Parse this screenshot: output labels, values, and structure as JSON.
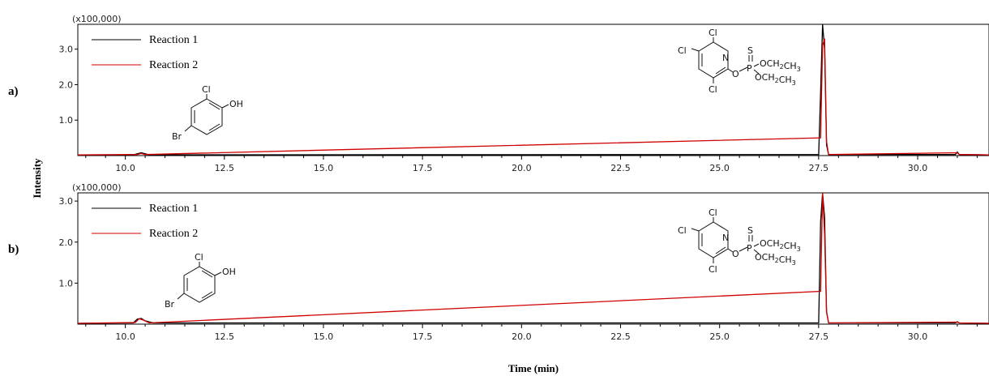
{
  "figure": {
    "y_axis_label": "Intensity",
    "x_axis_label": "Time (min)"
  },
  "chart_data": [
    {
      "type": "line",
      "panel_label": "a)",
      "scale_label": "(x100,000)",
      "xlim": [
        8.8,
        31.8
      ],
      "ylim": [
        0,
        3.7
      ],
      "x_ticks": [
        "10.0",
        "12.5",
        "15.0",
        "17.5",
        "20.0",
        "22.5",
        "25.0",
        "27.5",
        "30.0"
      ],
      "y_ticks": [
        "1.0",
        "2.0",
        "3.0"
      ],
      "legend_position": "top-left",
      "series": [
        {
          "name": "Reaction 1",
          "color": "#000000",
          "points": [
            [
              8.8,
              0.02
            ],
            [
              10.2,
              0.02
            ],
            [
              10.3,
              0.05
            ],
            [
              10.4,
              0.08
            ],
            [
              10.5,
              0.05
            ],
            [
              10.6,
              0.02
            ],
            [
              27.5,
              0.03
            ],
            [
              27.55,
              1.8
            ],
            [
              27.6,
              3.7
            ],
            [
              27.65,
              3.0
            ],
            [
              27.7,
              0.3
            ],
            [
              27.75,
              0.03
            ],
            [
              30.95,
              0.03
            ],
            [
              31.0,
              0.1
            ],
            [
              31.05,
              0.03
            ],
            [
              31.8,
              0.02
            ]
          ]
        },
        {
          "name": "Reaction 2",
          "color": "#d00000",
          "points": [
            [
              8.8,
              0.02
            ],
            [
              10.3,
              0.03
            ],
            [
              10.4,
              0.06
            ],
            [
              10.5,
              0.03
            ],
            [
              27.55,
              0.5
            ],
            [
              27.6,
              3.1
            ],
            [
              27.65,
              3.3
            ],
            [
              27.7,
              0.4
            ],
            [
              27.75,
              0.03
            ],
            [
              31.0,
              0.08
            ],
            [
              31.05,
              0.03
            ],
            [
              31.8,
              0.02
            ]
          ]
        }
      ]
    },
    {
      "type": "line",
      "panel_label": "b)",
      "scale_label": "(x100,000)",
      "xlim": [
        8.8,
        31.8
      ],
      "ylim": [
        0,
        3.2
      ],
      "x_ticks": [
        "10.0",
        "12.5",
        "15.0",
        "17.5",
        "20.0",
        "22.5",
        "25.0",
        "27.5",
        "30.0"
      ],
      "y_ticks": [
        "1.0",
        "2.0",
        "3.0"
      ],
      "legend_position": "top-left",
      "series": [
        {
          "name": "Reaction 1",
          "color": "#000000",
          "points": [
            [
              8.8,
              0.02
            ],
            [
              10.2,
              0.03
            ],
            [
              10.3,
              0.12
            ],
            [
              10.4,
              0.14
            ],
            [
              10.5,
              0.08
            ],
            [
              10.7,
              0.03
            ],
            [
              27.5,
              0.03
            ],
            [
              27.55,
              2.5
            ],
            [
              27.6,
              3.2
            ],
            [
              27.65,
              2.6
            ],
            [
              27.7,
              0.3
            ],
            [
              27.75,
              0.03
            ],
            [
              30.95,
              0.03
            ],
            [
              31.0,
              0.06
            ],
            [
              31.05,
              0.03
            ],
            [
              31.8,
              0.02
            ]
          ]
        },
        {
          "name": "Reaction 2",
          "color": "#d00000",
          "points": [
            [
              8.8,
              0.02
            ],
            [
              10.25,
              0.04
            ],
            [
              10.35,
              0.13
            ],
            [
              10.45,
              0.1
            ],
            [
              10.6,
              0.03
            ],
            [
              27.55,
              0.8
            ],
            [
              27.6,
              3.2
            ],
            [
              27.65,
              2.2
            ],
            [
              27.7,
              0.3
            ],
            [
              27.75,
              0.03
            ],
            [
              31.0,
              0.05
            ],
            [
              31.05,
              0.03
            ],
            [
              31.8,
              0.02
            ]
          ]
        }
      ]
    }
  ],
  "structures": {
    "phenol": {
      "cl": "Cl",
      "oh": "OH",
      "br": "Br"
    },
    "phosphorothioate": {
      "cl_top": "Cl",
      "cl_left": "Cl",
      "n": "N",
      "cl_bottom": "Cl",
      "o_link": "O",
      "p": "P",
      "s": "S",
      "oet1": "OCH2CH3",
      "oet2": "OCH2CH3"
    }
  }
}
